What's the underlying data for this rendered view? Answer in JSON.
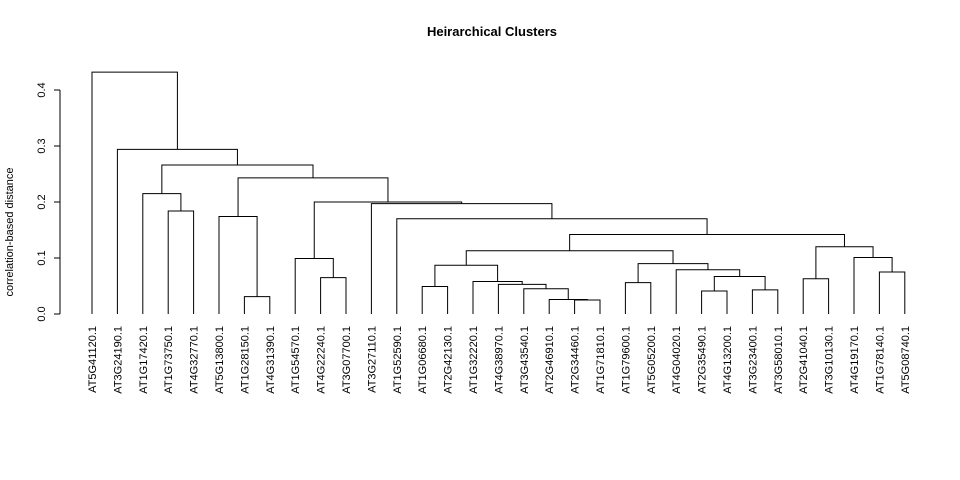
{
  "chart_data": {
    "type": "dendrogram",
    "title": "Heirarchical Clusters",
    "xlabel": "",
    "ylabel": "correlation-based distance",
    "ylim": [
      0,
      0.45
    ],
    "yticks": [
      "0.0",
      "0.1",
      "0.2",
      "0.3",
      "0.4"
    ],
    "ytick_values": [
      0,
      0.1,
      0.2,
      0.3,
      0.4
    ],
    "grid": false,
    "leaves": [
      "AT5G41120.1",
      "AT3G24190.1",
      "AT1G17420.1",
      "AT1G73750.1",
      "AT4G32770.1",
      "AT5G13800.1",
      "AT1G28150.1",
      "AT4G31390.1",
      "AT1G54570.1",
      "AT4G22240.1",
      "AT3G07700.1",
      "AT3G27110.1",
      "AT1G52590.1",
      "AT1G06680.1",
      "AT2G42130.1",
      "AT1G32220.1",
      "AT4G38970.1",
      "AT3G43540.1",
      "AT2G46910.1",
      "AT2G34460.1",
      "AT1G71810.1",
      "AT1G79600.1",
      "AT5G05200.1",
      "AT4G04020.1",
      "AT2G35490.1",
      "AT4G13200.1",
      "AT3G23400.1",
      "AT3G58010.1",
      "AT2G41040.1",
      "AT3G10130.1",
      "AT4G19170.1",
      "AT1G78140.1",
      "AT5G08740.1"
    ],
    "merges": [
      {
        "a": 19,
        "b": 20,
        "height": 0.025
      },
      {
        "a": 18,
        "b": "m0",
        "height": 0.026
      },
      {
        "a": 6,
        "b": 7,
        "height": 0.031
      },
      {
        "a": 24,
        "b": 25,
        "height": 0.041
      },
      {
        "a": 26,
        "b": 27,
        "height": 0.043
      },
      {
        "a": 17,
        "b": "m1",
        "height": 0.045
      },
      {
        "a": 13,
        "b": 14,
        "height": 0.049
      },
      {
        "a": 16,
        "b": "m5",
        "height": 0.053
      },
      {
        "a": 21,
        "b": 22,
        "height": 0.056
      },
      {
        "a": 15,
        "b": "m7",
        "height": 0.058
      },
      {
        "a": 28,
        "b": 29,
        "height": 0.063
      },
      {
        "a": 10,
        "b": 9,
        "height": 0.065,
        "order": "rev"
      },
      {
        "a": "m3",
        "b": "m4",
        "height": 0.067
      },
      {
        "a": 31,
        "b": 32,
        "height": 0.075
      },
      {
        "a": 23,
        "b": "m12",
        "height": 0.079
      },
      {
        "a": "m6",
        "b": "m9",
        "height": 0.087
      },
      {
        "a": "m8",
        "b": "m14",
        "height": 0.09
      },
      {
        "a": 8,
        "b": "m11",
        "height": 0.099
      },
      {
        "a": 30,
        "b": "m13",
        "height": 0.101
      },
      {
        "a": "m15",
        "b": "m16",
        "height": 0.113
      },
      {
        "a": "m10",
        "b": "m18",
        "height": 0.12
      },
      {
        "a": "m19",
        "b": "m20",
        "height": 0.142
      },
      {
        "a": 12,
        "b": "m21",
        "height": 0.17
      },
      {
        "a": 5,
        "b": "m2",
        "height": 0.174
      },
      {
        "a": 4,
        "b": 3,
        "height": 0.184,
        "order": "rev"
      },
      {
        "a": 11,
        "b": "m22",
        "height": 0.197
      },
      {
        "a": "m17",
        "b": "m25",
        "height": 0.2
      },
      {
        "a": 2,
        "b": "m24",
        "height": 0.215
      },
      {
        "a": "m23",
        "b": "m26",
        "height": 0.243
      },
      {
        "a": "m27",
        "b": "m28",
        "height": 0.266
      },
      {
        "a": 1,
        "b": "m29",
        "height": 0.294
      },
      {
        "a": 0,
        "b": "m30",
        "height": 0.432
      }
    ]
  }
}
